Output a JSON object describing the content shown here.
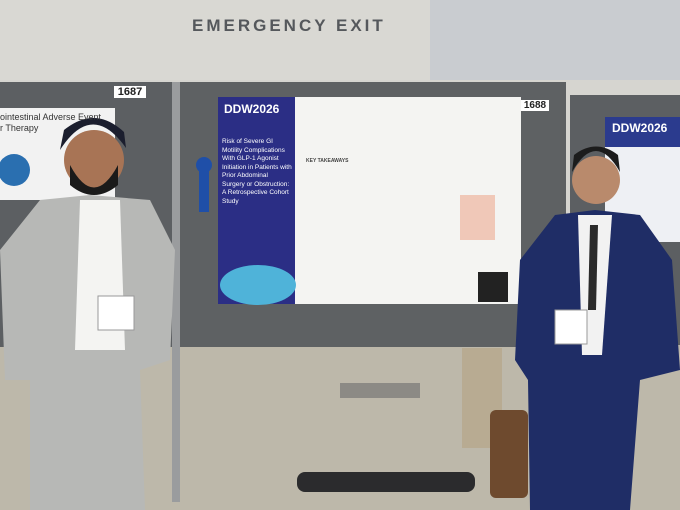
{
  "sign": {
    "exit": "EMERGENCY EXIT"
  },
  "booths": {
    "left_number": "1687",
    "right_number": "1688"
  },
  "left_poster": {
    "title_fragment_1": "ointestinal Adverse Event",
    "title_fragment_2": "r Therapy"
  },
  "main_poster": {
    "logo": "DDW2026",
    "title": "Risk of Severe GI Motility Complications With GLP-1 Agonist Initiation in Patients with Prior Abdominal Surgery or Obstruction: A Retrospective Cohort Study",
    "section": "KEY TAKEAWAYS"
  },
  "right_poster": {
    "logo": "DDW2026"
  }
}
